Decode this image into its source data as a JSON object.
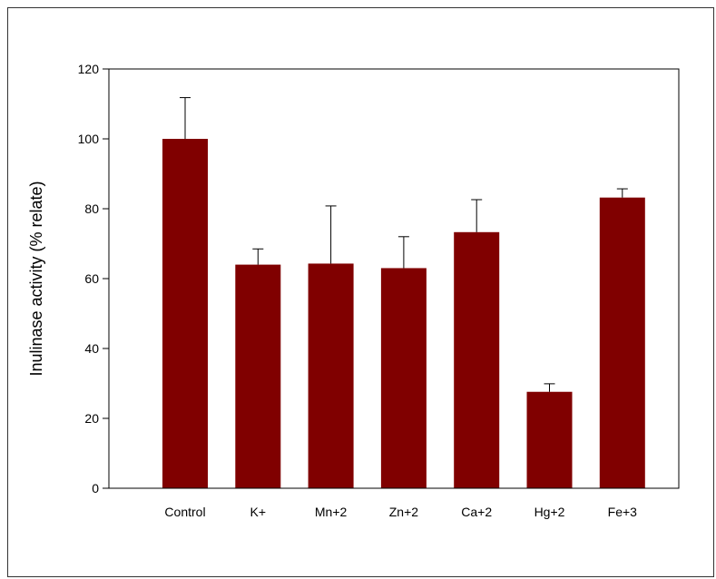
{
  "chart_data": {
    "type": "bar",
    "title": "",
    "xlabel": "",
    "ylabel": "Inulinase activity (% relate)",
    "categories": [
      "Control",
      "K+",
      "Mn+2",
      "Zn+2",
      "Ca+2",
      "Hg+2",
      "Fe+3"
    ],
    "values": [
      100,
      64,
      64.3,
      63,
      73.3,
      27.6,
      83.2
    ],
    "error_upper": [
      11.8,
      4.5,
      16.5,
      9,
      9.3,
      2.3,
      2.5
    ],
    "ylim": [
      0,
      120
    ],
    "yticks": [
      0,
      20,
      40,
      60,
      80,
      100,
      120
    ],
    "grid": false,
    "legend": "none",
    "bar_color": "#800000"
  }
}
